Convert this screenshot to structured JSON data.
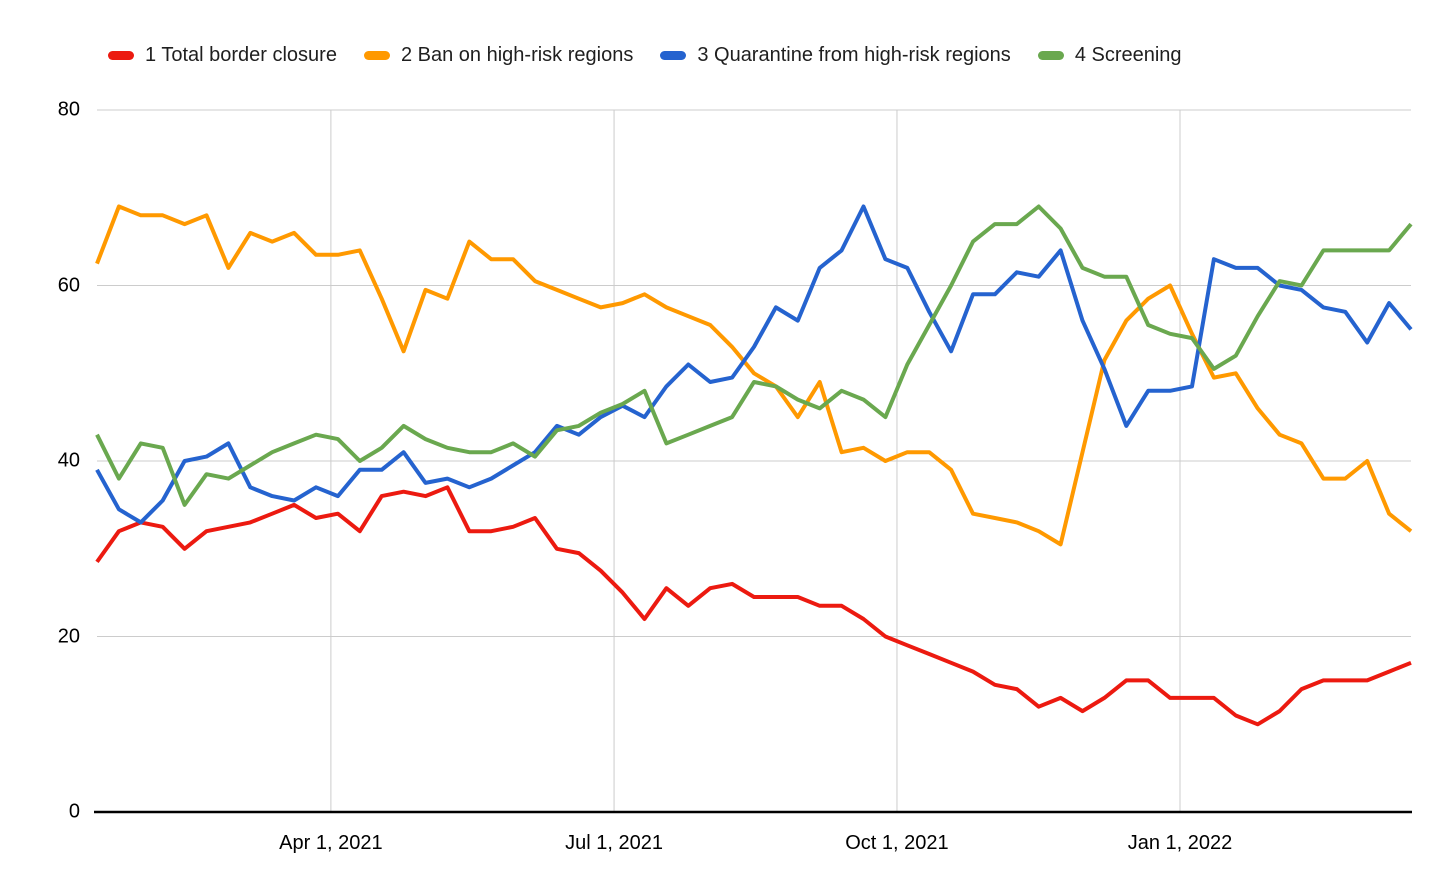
{
  "chart_data": {
    "type": "line",
    "title": "",
    "legend_position": "top",
    "grid": true,
    "grid_color": "#cccccc",
    "axis_color": "#000000",
    "background_color": "#ffffff",
    "y_axis": {
      "min": 0,
      "max": 80,
      "ticks": [
        {
          "v": 0,
          "label": "0"
        },
        {
          "v": 20,
          "label": "20"
        },
        {
          "v": 40,
          "label": "40"
        },
        {
          "v": 60,
          "label": "60"
        },
        {
          "v": 80,
          "label": "80"
        }
      ]
    },
    "x_axis": {
      "ticks": [
        {
          "label": "Apr 1, 2021",
          "pos": 0.178
        },
        {
          "label": "Jul 1, 2021",
          "pos": 0.3935
        },
        {
          "label": "Oct 1, 2021",
          "pos": 0.6088
        },
        {
          "label": "Jan 1, 2022",
          "pos": 0.8242
        }
      ]
    },
    "series": [
      {
        "name": "1 Total border closure",
        "color": "#ec1a10",
        "values": [
          28.5,
          32,
          33,
          32.5,
          30,
          32,
          32.5,
          33,
          34,
          35,
          33.5,
          34,
          32,
          36,
          36.5,
          36,
          37,
          32,
          32,
          32.5,
          33.5,
          30,
          29.5,
          27.5,
          25,
          22,
          25.5,
          23.5,
          25.5,
          26,
          24.5,
          24.5,
          24.5,
          23.5,
          23.5,
          22,
          20,
          19,
          18,
          17,
          16,
          14.5,
          14,
          12,
          13,
          11.5,
          13,
          15,
          15,
          13,
          13,
          13,
          11,
          10,
          11.5,
          14,
          15,
          15,
          15,
          16,
          17
        ]
      },
      {
        "name": "2 Ban on high-risk regions",
        "color": "#ff9900",
        "values": [
          62.5,
          69,
          68,
          68,
          67,
          68,
          62,
          66,
          65,
          66,
          63.5,
          63.5,
          64,
          58.5,
          52.5,
          59.5,
          58.5,
          65,
          63,
          63,
          60.5,
          59.5,
          58.5,
          57.5,
          58,
          59,
          57.5,
          56.5,
          55.5,
          53,
          50,
          48.5,
          45,
          49,
          41,
          41.5,
          40,
          41,
          41,
          39,
          34,
          33.5,
          33,
          32,
          30.5,
          41,
          51.5,
          56,
          58.5,
          60,
          54.5,
          49.5,
          50,
          46,
          43,
          42,
          38,
          38,
          40,
          34,
          32
        ]
      },
      {
        "name": "3 Quarantine from high-risk regions",
        "color": "#2563cf",
        "values": [
          39,
          34.5,
          33,
          35.5,
          40,
          40.5,
          42,
          37,
          36,
          35.5,
          37,
          36,
          39,
          39,
          41,
          37.5,
          38,
          37,
          38,
          39.5,
          41,
          44,
          43,
          45,
          46.3,
          45,
          48.5,
          51,
          49,
          49.5,
          53,
          57.5,
          56,
          62,
          64,
          69,
          63,
          62,
          57,
          52.5,
          59,
          59,
          61.5,
          61,
          64,
          56,
          50.5,
          44,
          48,
          48,
          48.5,
          63,
          62,
          62,
          60,
          59.5,
          57.5,
          57,
          53.5,
          58,
          55
        ]
      },
      {
        "name": "4 Screening",
        "color": "#6aa84f",
        "values": [
          43,
          38,
          42,
          41.5,
          35,
          38.5,
          38,
          39.5,
          41,
          42,
          43,
          42.5,
          40,
          41.5,
          44,
          42.5,
          41.5,
          41,
          41,
          42,
          40.5,
          43.5,
          44,
          45.5,
          46.5,
          48,
          42,
          43,
          44,
          45,
          49,
          48.5,
          47,
          46,
          48,
          47,
          45,
          51,
          55.5,
          60,
          65,
          67,
          67,
          69,
          66.5,
          62,
          61,
          61,
          55.5,
          54.5,
          54,
          50.5,
          52,
          56.5,
          60.5,
          60,
          64,
          64,
          64,
          64,
          67
        ]
      }
    ]
  }
}
